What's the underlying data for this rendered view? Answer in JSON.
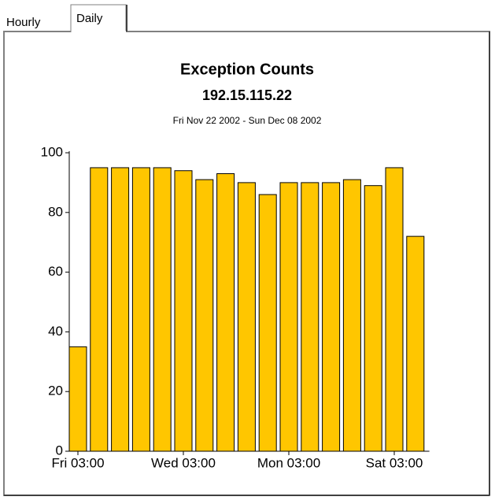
{
  "tabs": [
    "Hourly",
    "Daily"
  ],
  "chart_data": {
    "type": "bar",
    "title": "Exception Counts",
    "subtitle": "192.15.115.22",
    "date_range": "Fri Nov 22 2002 - Sun Dec 08 2002",
    "categories": [
      "Fri 03:00",
      null,
      null,
      null,
      null,
      "Wed 03:00",
      null,
      null,
      null,
      null,
      "Mon 03:00",
      null,
      null,
      null,
      null,
      "Sat 03:00",
      null
    ],
    "values": [
      35,
      95,
      95,
      95,
      95,
      94,
      91,
      93,
      90,
      86,
      90,
      90,
      90,
      91,
      89,
      95,
      72
    ],
    "color": "#ffc600",
    "ylim": [
      0,
      100
    ],
    "yticks": [
      0,
      20,
      40,
      60,
      80,
      100
    ],
    "grid": false
  }
}
